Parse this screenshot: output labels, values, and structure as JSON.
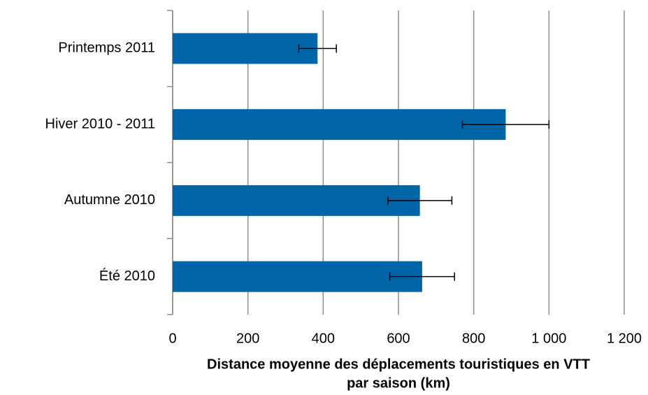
{
  "chart_data": {
    "type": "barh",
    "categories": [
      "Été 2010",
      "Autumne 2010",
      "Hiver 2010 - 2011",
      "Printemps 2011"
    ],
    "values": [
      663,
      657,
      885,
      385
    ],
    "errors": [
      86,
      85,
      115,
      50
    ],
    "color": "#0066a8",
    "xlabel": [
      "Distance moyenne des déplacements touristiques en VTT",
      "par saison (km)"
    ],
    "xlim": [
      0,
      1200
    ],
    "xticks": [
      0,
      200,
      400,
      600,
      800,
      {
        "value": 1000,
        "label": "1 000"
      },
      {
        "value": 1200,
        "label": "1 200"
      }
    ],
    "grid": true
  }
}
